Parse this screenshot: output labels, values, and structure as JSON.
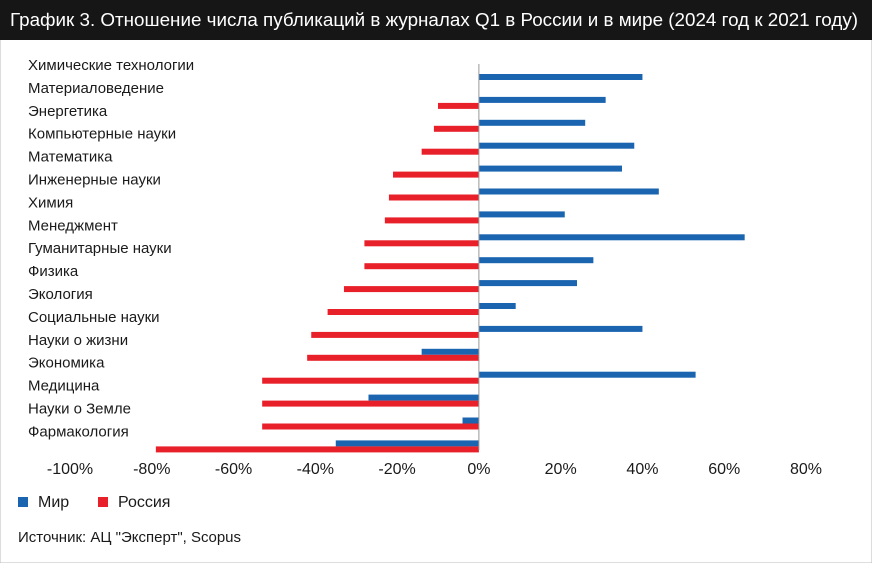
{
  "chart_data": {
    "type": "hbar",
    "title": "График 3. Отношение числа публикаций в журналах Q1 в России и в мире (2024 год к 2021 году)",
    "categories": [
      "Химические технологии",
      "Материаловедение",
      "Энергетика",
      "Компьютерные науки",
      "Математика",
      "Инженерные науки",
      "Химия",
      "Менеджмент",
      "Гуманитарные науки",
      "Физика",
      "Экология",
      "Социальные науки",
      "Науки о жизни",
      "Экономика",
      "Медицина",
      "Науки о Земле",
      "Фармакология"
    ],
    "series": [
      {
        "name": "Мир",
        "color": "#1a64b0",
        "values": [
          40,
          31,
          26,
          38,
          35,
          44,
          21,
          65,
          28,
          24,
          9,
          40,
          -14,
          53,
          -27,
          -4,
          -35
        ]
      },
      {
        "name": "Россия",
        "color": "#e8202a",
        "values": [
          null,
          -10,
          -11,
          -14,
          -21,
          -22,
          -23,
          -28,
          -28,
          -33,
          -37,
          -41,
          -42,
          -53,
          -53,
          -53,
          -79
        ]
      }
    ],
    "xlim": [
      -100,
      80
    ],
    "xticks": [
      {
        "value": -100,
        "label": "-100%"
      },
      {
        "value": -80,
        "label": "-80%"
      },
      {
        "value": -60,
        "label": "-60%"
      },
      {
        "value": -40,
        "label": "-40%"
      },
      {
        "value": -20,
        "label": "-20%"
      },
      {
        "value": 0,
        "label": "0%"
      },
      {
        "value": 20,
        "label": "20%"
      },
      {
        "value": 40,
        "label": "40%"
      },
      {
        "value": 60,
        "label": "60%"
      },
      {
        "value": 80,
        "label": "80%"
      }
    ],
    "legend": "bottom-left",
    "source": "Источник: АЦ \"Эксперт\", Scopus"
  }
}
